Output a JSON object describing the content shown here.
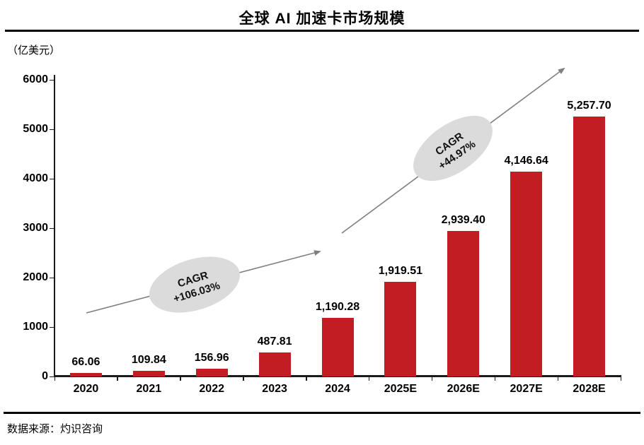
{
  "page": {
    "title": "全球 AI 加速卡市场规模",
    "unit_label": "（亿美元）",
    "source": "数据来源：灼识咨询"
  },
  "chart_data": {
    "type": "bar",
    "title": "全球 AI 加速卡市场规模",
    "unit": "亿美元",
    "categories": [
      "2020",
      "2021",
      "2022",
      "2023",
      "2024",
      "2025E",
      "2026E",
      "2027E",
      "2028E"
    ],
    "values": [
      66.06,
      109.84,
      156.96,
      487.81,
      1190.28,
      1919.51,
      2939.4,
      4146.64,
      5257.7
    ],
    "value_labels": [
      "66.06",
      "109.84",
      "156.96",
      "487.81",
      "1,190.28",
      "1,919.51",
      "2,939.40",
      "4,146.64",
      "5,257.70"
    ],
    "ylim": [
      0,
      6000
    ],
    "y_ticks": [
      0,
      1000,
      2000,
      3000,
      4000,
      5000,
      6000
    ],
    "grid": "off",
    "legend": "none",
    "bar_color": "#C11D22",
    "arrow_color": "#7F7F7F",
    "bubble_color": "#DBDBDB",
    "annotations": [
      {
        "line1": "CAGR",
        "line2": "+106.03%"
      },
      {
        "line1": "CAGR",
        "line2": "+44.97%"
      }
    ]
  }
}
